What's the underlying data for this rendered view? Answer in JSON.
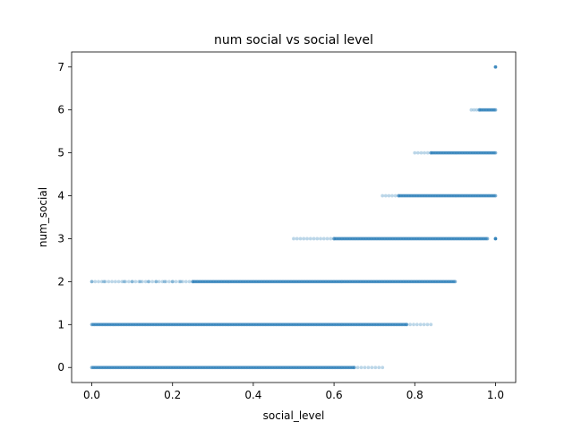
{
  "chart_data": {
    "type": "scatter",
    "title": "num social vs social level",
    "xlabel": "social_level",
    "ylabel": "num_social",
    "xlim": [
      -0.05,
      1.05
    ],
    "ylim": [
      -0.35,
      7.35
    ],
    "x_ticks": [
      "0.0",
      "0.2",
      "0.4",
      "0.6",
      "0.8",
      "1.0"
    ],
    "y_ticks": [
      "0",
      "1",
      "2",
      "3",
      "4",
      "5",
      "6",
      "7"
    ],
    "grid": false,
    "legend": "none",
    "marker_color": "#1f77b4",
    "bands": [
      {
        "y": 0,
        "dense_range": [
          0.0,
          0.65
        ],
        "sparse_range": [
          0.65,
          0.72
        ]
      },
      {
        "y": 1,
        "dense_range": [
          0.0,
          0.78
        ],
        "sparse_range": [
          0.78,
          0.84
        ]
      },
      {
        "y": 2,
        "dense_range": [
          0.25,
          0.9
        ],
        "sparse_range": [
          0.0,
          0.25
        ],
        "sparse_extra": [
          0.0,
          0.03,
          0.08,
          0.1,
          0.12,
          0.14,
          0.16,
          0.18,
          0.2,
          0.22
        ]
      },
      {
        "y": 3,
        "dense_range": [
          0.6,
          0.98
        ],
        "sparse_range": [
          0.5,
          0.6
        ],
        "extra_points": [
          1.0
        ]
      },
      {
        "y": 4,
        "dense_range": [
          0.76,
          1.0
        ],
        "sparse_range": [
          0.72,
          0.76
        ]
      },
      {
        "y": 5,
        "dense_range": [
          0.84,
          1.0
        ],
        "sparse_range": [
          0.8,
          0.84
        ]
      },
      {
        "y": 6,
        "dense_range": [
          0.96,
          1.0
        ],
        "sparse_range": [
          0.94,
          0.96
        ]
      },
      {
        "y": 7,
        "dense_range": [
          1.0,
          1.0
        ],
        "sparse_range": [
          1.0,
          1.0
        ]
      }
    ]
  }
}
